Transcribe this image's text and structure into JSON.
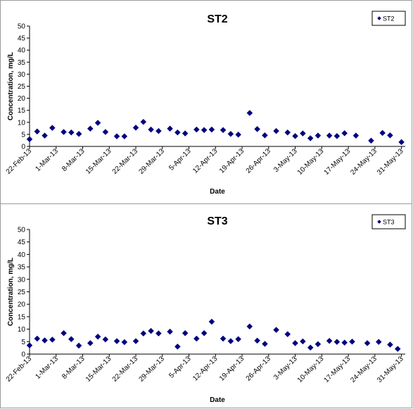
{
  "chart_data": [
    {
      "type": "scatter",
      "title": "ST2",
      "xlabel": "Date",
      "ylabel": "Concentration, mg/L",
      "ylim": [
        0,
        50
      ],
      "yticks": [
        0,
        5,
        10,
        15,
        20,
        25,
        30,
        35,
        40,
        45,
        50
      ],
      "xlim": [
        "2013-02-22",
        "2013-06-01"
      ],
      "xticks": [
        "22-Feb-13",
        "1-Mar-13",
        "8-Mar-13",
        "15-Mar-13",
        "22-Mar-13",
        "29-Mar-13",
        "5-Apr-13",
        "12-Apr-13",
        "19-Apr-13",
        "26-Apr-13",
        "3-May-13",
        "10-May-13",
        "17-May-13",
        "24-May-13",
        "31-May-13"
      ],
      "grid": false,
      "legend_position": "top-right",
      "series": [
        {
          "name": "ST2",
          "color": "#000080",
          "marker": "diamond",
          "points": [
            {
              "x": "2013-02-22",
              "y": 3.0
            },
            {
              "x": "2013-02-24",
              "y": 6.2
            },
            {
              "x": "2013-02-26",
              "y": 4.5
            },
            {
              "x": "2013-02-28",
              "y": 7.7
            },
            {
              "x": "2013-03-03",
              "y": 6.0
            },
            {
              "x": "2013-03-05",
              "y": 5.8
            },
            {
              "x": "2013-03-07",
              "y": 5.2
            },
            {
              "x": "2013-03-10",
              "y": 7.4
            },
            {
              "x": "2013-03-12",
              "y": 9.8
            },
            {
              "x": "2013-03-14",
              "y": 6.0
            },
            {
              "x": "2013-03-17",
              "y": 4.2
            },
            {
              "x": "2013-03-19",
              "y": 4.2
            },
            {
              "x": "2013-03-22",
              "y": 7.8
            },
            {
              "x": "2013-03-24",
              "y": 10.2
            },
            {
              "x": "2013-03-26",
              "y": 7.0
            },
            {
              "x": "2013-03-28",
              "y": 6.4
            },
            {
              "x": "2013-03-31",
              "y": 7.4
            },
            {
              "x": "2013-04-02",
              "y": 5.8
            },
            {
              "x": "2013-04-04",
              "y": 5.4
            },
            {
              "x": "2013-04-07",
              "y": 7.0
            },
            {
              "x": "2013-04-09",
              "y": 6.8
            },
            {
              "x": "2013-04-11",
              "y": 7.0
            },
            {
              "x": "2013-04-14",
              "y": 6.8
            },
            {
              "x": "2013-04-16",
              "y": 5.2
            },
            {
              "x": "2013-04-18",
              "y": 4.9
            },
            {
              "x": "2013-04-21",
              "y": 13.9
            },
            {
              "x": "2013-04-23",
              "y": 7.2
            },
            {
              "x": "2013-04-25",
              "y": 4.6
            },
            {
              "x": "2013-04-28",
              "y": 6.4
            },
            {
              "x": "2013-05-01",
              "y": 5.8
            },
            {
              "x": "2013-05-03",
              "y": 4.3
            },
            {
              "x": "2013-05-05",
              "y": 5.4
            },
            {
              "x": "2013-05-07",
              "y": 3.4
            },
            {
              "x": "2013-05-09",
              "y": 4.5
            },
            {
              "x": "2013-05-12",
              "y": 4.5
            },
            {
              "x": "2013-05-14",
              "y": 4.3
            },
            {
              "x": "2013-05-16",
              "y": 5.5
            },
            {
              "x": "2013-05-19",
              "y": 4.5
            },
            {
              "x": "2013-05-23",
              "y": 2.4
            },
            {
              "x": "2013-05-26",
              "y": 5.6
            },
            {
              "x": "2013-05-28",
              "y": 4.6
            },
            {
              "x": "2013-05-31",
              "y": 1.8
            }
          ]
        }
      ]
    },
    {
      "type": "scatter",
      "title": "ST3",
      "xlabel": "Date",
      "ylabel": "Concentration, mg/L",
      "ylim": [
        0,
        50
      ],
      "yticks": [
        0,
        5,
        10,
        15,
        20,
        25,
        30,
        35,
        40,
        45,
        50
      ],
      "xlim": [
        "2013-02-22",
        "2013-06-01"
      ],
      "xticks": [
        "22-Feb-13",
        "1-Mar-13",
        "8-Mar-13",
        "15-Mar-13",
        "22-Mar-13",
        "29-Mar-13",
        "5-Apr-13",
        "12-Apr-13",
        "19-Apr-13",
        "26-Apr-13",
        "3-May-13",
        "10-May-13",
        "17-May-13",
        "24-May-13",
        "31-May-13"
      ],
      "grid": false,
      "legend_position": "top-right",
      "series": [
        {
          "name": "ST3",
          "color": "#000080",
          "marker": "diamond",
          "points": [
            {
              "x": "2013-02-22",
              "y": 3.5
            },
            {
              "x": "2013-02-24",
              "y": 6.2
            },
            {
              "x": "2013-02-26",
              "y": 5.5
            },
            {
              "x": "2013-02-28",
              "y": 5.8
            },
            {
              "x": "2013-03-03",
              "y": 8.4
            },
            {
              "x": "2013-03-05",
              "y": 6.0
            },
            {
              "x": "2013-03-07",
              "y": 3.4
            },
            {
              "x": "2013-03-10",
              "y": 4.4
            },
            {
              "x": "2013-03-12",
              "y": 7.0
            },
            {
              "x": "2013-03-14",
              "y": 5.9
            },
            {
              "x": "2013-03-17",
              "y": 5.2
            },
            {
              "x": "2013-03-19",
              "y": 4.8
            },
            {
              "x": "2013-03-22",
              "y": 5.2
            },
            {
              "x": "2013-03-24",
              "y": 8.3
            },
            {
              "x": "2013-03-26",
              "y": 9.3
            },
            {
              "x": "2013-03-28",
              "y": 8.3
            },
            {
              "x": "2013-03-31",
              "y": 9.0
            },
            {
              "x": "2013-04-02",
              "y": 3.0
            },
            {
              "x": "2013-04-04",
              "y": 8.4
            },
            {
              "x": "2013-04-07",
              "y": 6.2
            },
            {
              "x": "2013-04-09",
              "y": 8.4
            },
            {
              "x": "2013-04-11",
              "y": 13.0
            },
            {
              "x": "2013-04-14",
              "y": 6.2
            },
            {
              "x": "2013-04-16",
              "y": 5.2
            },
            {
              "x": "2013-04-18",
              "y": 6.0
            },
            {
              "x": "2013-04-21",
              "y": 11.1
            },
            {
              "x": "2013-04-23",
              "y": 5.4
            },
            {
              "x": "2013-04-25",
              "y": 4.1
            },
            {
              "x": "2013-04-28",
              "y": 9.7
            },
            {
              "x": "2013-05-01",
              "y": 8.0
            },
            {
              "x": "2013-05-03",
              "y": 4.4
            },
            {
              "x": "2013-05-05",
              "y": 5.1
            },
            {
              "x": "2013-05-07",
              "y": 2.6
            },
            {
              "x": "2013-05-09",
              "y": 4.0
            },
            {
              "x": "2013-05-12",
              "y": 5.3
            },
            {
              "x": "2013-05-14",
              "y": 4.9
            },
            {
              "x": "2013-05-16",
              "y": 4.6
            },
            {
              "x": "2013-05-18",
              "y": 5.0
            },
            {
              "x": "2013-05-22",
              "y": 4.4
            },
            {
              "x": "2013-05-25",
              "y": 4.9
            },
            {
              "x": "2013-05-28",
              "y": 3.8
            },
            {
              "x": "2013-05-30",
              "y": 2.1
            }
          ]
        }
      ]
    }
  ]
}
